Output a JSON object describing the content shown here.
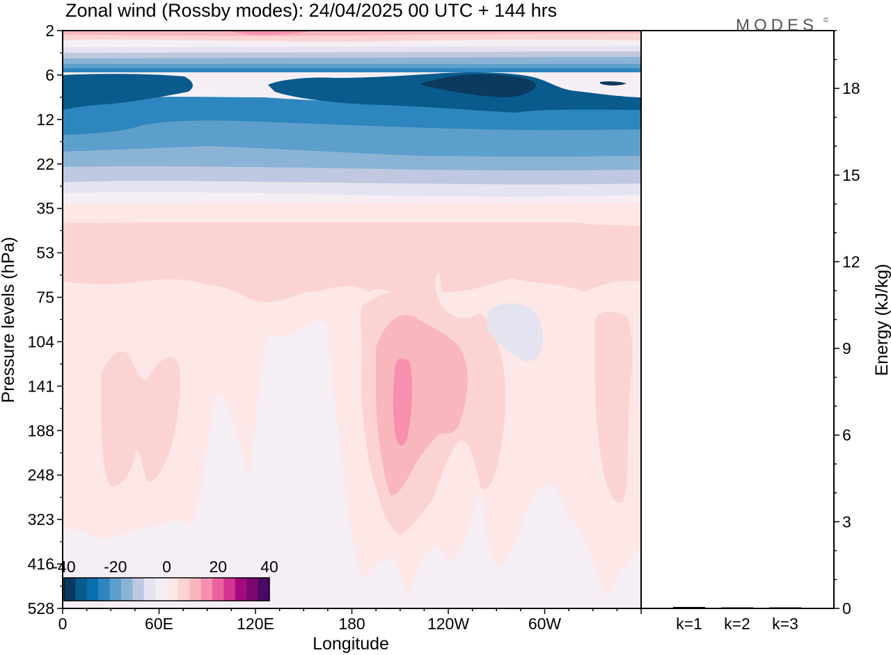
{
  "chart_data": {
    "type": "heatmap",
    "title": "Zonal wind (Rossby modes):  24/04/2025  00 UTC  + 144 hrs",
    "logo": "MODES",
    "logo_mark": "©",
    "xlabel": "Longitude",
    "ylabel": "Pressure levels (hPa)",
    "x_ticks": [
      "0",
      "60E",
      "120E",
      "180",
      "120W",
      "60W"
    ],
    "y_ticks": [
      "2",
      "6",
      "12",
      "22",
      "35",
      "53",
      "75",
      "104",
      "141",
      "188",
      "248",
      "323",
      "416",
      "528"
    ],
    "colorbar": {
      "ticks": [
        "-40",
        "-20",
        "0",
        "20",
        "40"
      ],
      "range": [
        -40,
        40
      ],
      "colors": [
        "#0a3a5e",
        "#085b8c",
        "#0a6fad",
        "#2d86bd",
        "#5d9fcb",
        "#8bb3d6",
        "#bfc8e0",
        "#e4e3ef",
        "#f5eff5",
        "#fde7e7",
        "#fbd3d3",
        "#f9b6bd",
        "#f78fae",
        "#ec61a0",
        "#d43392",
        "#a5097b",
        "#7a0870",
        "#4a0a64"
      ]
    },
    "field_description_levels": [
      {
        "level": "2",
        "u": 15
      },
      {
        "level": "6",
        "u": -35
      },
      {
        "level": "12",
        "u": -25
      },
      {
        "level": "22",
        "u": -15
      },
      {
        "level": "35",
        "u": 3
      },
      {
        "level": "53",
        "u": 8
      },
      {
        "level": "104",
        "u": 5
      },
      {
        "level": "141",
        "u": 12
      },
      {
        "level": "248",
        "u": 5
      },
      {
        "level": "528",
        "u": 0
      }
    ],
    "energy_panel": {
      "ylabel": "Energy (kJ/kg)",
      "y_ticks": [
        "0",
        "3",
        "6",
        "9",
        "12",
        "15",
        "18"
      ],
      "ylim": [
        0,
        20
      ],
      "categories": [
        "k=1",
        "k=2",
        "k=3"
      ],
      "values": [
        0.05,
        0.03,
        0.03
      ]
    }
  }
}
